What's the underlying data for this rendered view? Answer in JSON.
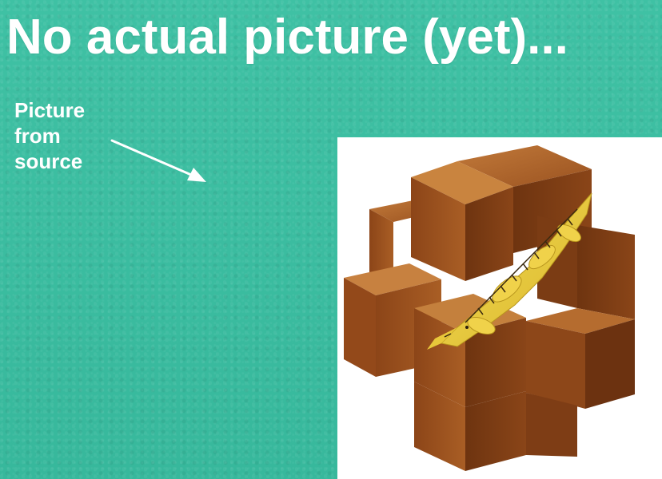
{
  "heading": "No actual picture (yet)...",
  "caption": {
    "line1": "Picture",
    "line2": "from",
    "line3": "source"
  },
  "colors": {
    "background": "#3fc1a4",
    "heading_text": "#ffffff",
    "caption_text": "#ffffff",
    "arrow": "#ffffff",
    "wood_dark": "#7a3d16",
    "wood_mid": "#a65a22",
    "wood_light": "#c9823e",
    "lizard": "#e9cc3a"
  },
  "image": {
    "subject": "wooden-burr-puzzle-with-lizard"
  }
}
